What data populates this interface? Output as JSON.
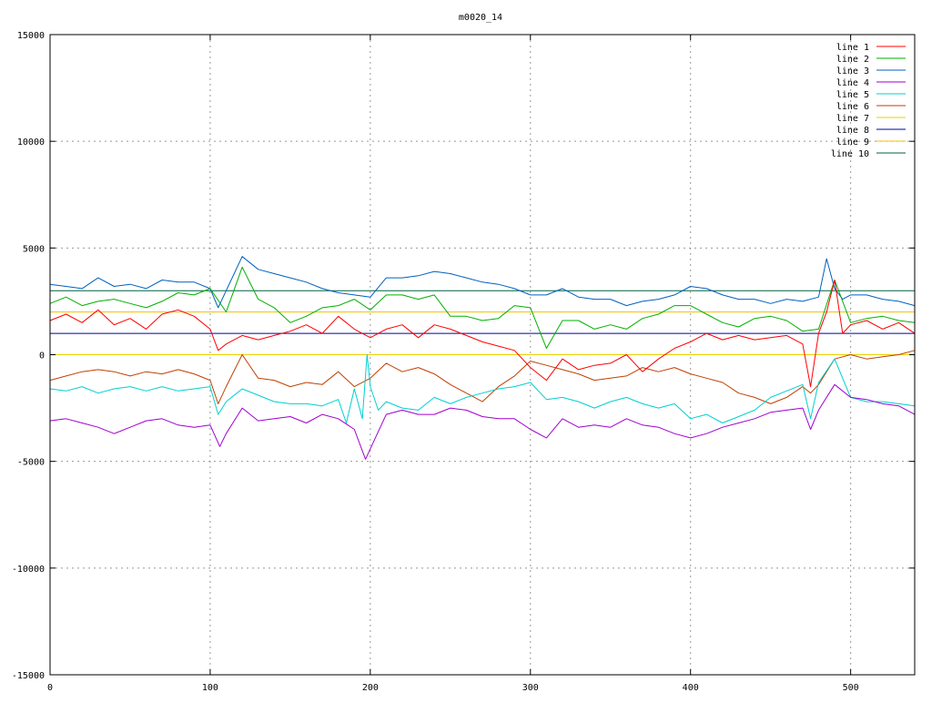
{
  "chart_data": {
    "type": "line",
    "title": "m0020_14",
    "xlabel": "",
    "ylabel": "",
    "xlim": [
      0,
      540
    ],
    "ylim": [
      -15000,
      15000
    ],
    "xticks": [
      0,
      100,
      200,
      300,
      400,
      500
    ],
    "yticks": [
      -15000,
      -10000,
      -5000,
      0,
      5000,
      10000,
      15000
    ],
    "grid": true,
    "legend_position": "top-right",
    "series": [
      {
        "name": "line 1",
        "color": "#ff0000",
        "x": [
          0,
          10,
          20,
          30,
          40,
          50,
          60,
          70,
          80,
          90,
          100,
          105,
          110,
          120,
          130,
          140,
          150,
          160,
          170,
          180,
          190,
          200,
          210,
          220,
          230,
          240,
          250,
          260,
          270,
          280,
          290,
          300,
          310,
          320,
          330,
          340,
          350,
          360,
          370,
          380,
          390,
          400,
          410,
          420,
          430,
          440,
          450,
          460,
          470,
          475,
          480,
          485,
          490,
          495,
          500,
          510,
          520,
          530,
          540
        ],
        "y": [
          1600,
          1900,
          1500,
          2100,
          1400,
          1700,
          1200,
          1900,
          2100,
          1800,
          1200,
          200,
          500,
          900,
          700,
          900,
          1100,
          1400,
          1000,
          1800,
          1200,
          800,
          1200,
          1400,
          800,
          1400,
          1200,
          900,
          600,
          400,
          200,
          -600,
          -1200,
          -200,
          -700,
          -500,
          -400,
          0,
          -800,
          -200,
          300,
          600,
          1000,
          700,
          900,
          700,
          800,
          900,
          500,
          -1500,
          1000,
          2000,
          3500,
          1000,
          1400,
          1600,
          1200,
          1500,
          1000
        ]
      },
      {
        "name": "line 2",
        "color": "#00b000",
        "x": [
          0,
          10,
          20,
          30,
          40,
          50,
          60,
          70,
          80,
          90,
          100,
          110,
          120,
          130,
          140,
          150,
          160,
          170,
          180,
          190,
          200,
          210,
          220,
          230,
          240,
          250,
          260,
          270,
          280,
          290,
          300,
          310,
          320,
          330,
          340,
          350,
          360,
          370,
          380,
          390,
          400,
          410,
          420,
          430,
          440,
          450,
          460,
          470,
          480,
          490,
          500,
          510,
          520,
          530,
          540
        ],
        "y": [
          2400,
          2700,
          2300,
          2500,
          2600,
          2400,
          2200,
          2500,
          2900,
          2800,
          3100,
          2000,
          4100,
          2600,
          2200,
          1500,
          1800,
          2200,
          2300,
          2600,
          2100,
          2800,
          2800,
          2600,
          2800,
          1800,
          1800,
          1600,
          1700,
          2300,
          2200,
          300,
          1600,
          1600,
          1200,
          1400,
          1200,
          1700,
          1900,
          2300,
          2300,
          1900,
          1500,
          1300,
          1700,
          1800,
          1600,
          1100,
          1200,
          3500,
          1500,
          1700,
          1800,
          1600,
          1500
        ]
      },
      {
        "name": "line 3",
        "color": "#0060c0",
        "x": [
          0,
          10,
          20,
          30,
          40,
          50,
          60,
          70,
          80,
          90,
          100,
          105,
          110,
          120,
          130,
          140,
          150,
          160,
          170,
          180,
          190,
          200,
          210,
          220,
          230,
          240,
          250,
          260,
          270,
          280,
          290,
          300,
          310,
          320,
          330,
          340,
          350,
          360,
          370,
          380,
          390,
          400,
          410,
          420,
          430,
          440,
          450,
          460,
          470,
          480,
          485,
          490,
          495,
          500,
          510,
          520,
          530,
          540
        ],
        "y": [
          3300,
          3200,
          3100,
          3600,
          3200,
          3300,
          3100,
          3500,
          3400,
          3400,
          3100,
          2200,
          3000,
          4600,
          4000,
          3800,
          3600,
          3400,
          3100,
          2900,
          2800,
          2700,
          3600,
          3600,
          3700,
          3900,
          3800,
          3600,
          3400,
          3300,
          3100,
          2800,
          2800,
          3100,
          2700,
          2600,
          2600,
          2300,
          2500,
          2600,
          2800,
          3200,
          3100,
          2800,
          2600,
          2600,
          2400,
          2600,
          2500,
          2700,
          4500,
          3100,
          2600,
          2800,
          2800,
          2600,
          2500,
          2300
        ]
      },
      {
        "name": "line 4",
        "color": "#a000d0",
        "x": [
          0,
          10,
          20,
          30,
          40,
          50,
          60,
          70,
          80,
          90,
          100,
          106,
          110,
          120,
          130,
          140,
          150,
          160,
          170,
          180,
          190,
          197,
          205,
          210,
          220,
          230,
          240,
          250,
          260,
          270,
          280,
          290,
          300,
          310,
          320,
          330,
          340,
          350,
          360,
          370,
          380,
          390,
          400,
          410,
          420,
          430,
          440,
          450,
          460,
          470,
          475,
          480,
          490,
          500,
          510,
          520,
          530,
          540
        ],
        "y": [
          -3100,
          -3000,
          -3200,
          -3400,
          -3700,
          -3400,
          -3100,
          -3000,
          -3300,
          -3400,
          -3300,
          -4300,
          -3700,
          -2500,
          -3100,
          -3000,
          -2900,
          -3200,
          -2800,
          -3000,
          -3500,
          -4900,
          -3600,
          -2800,
          -2600,
          -2800,
          -2800,
          -2500,
          -2600,
          -2900,
          -3000,
          -3000,
          -3500,
          -3900,
          -3000,
          -3400,
          -3300,
          -3400,
          -3000,
          -3300,
          -3400,
          -3700,
          -3900,
          -3700,
          -3400,
          -3200,
          -3000,
          -2700,
          -2600,
          -2500,
          -3500,
          -2600,
          -1400,
          -2000,
          -2100,
          -2300,
          -2400,
          -2800
        ]
      },
      {
        "name": "line 5",
        "color": "#00d0d0",
        "x": [
          0,
          10,
          20,
          30,
          40,
          50,
          60,
          70,
          80,
          90,
          100,
          105,
          110,
          120,
          130,
          140,
          150,
          160,
          170,
          180,
          185,
          190,
          195,
          198,
          200,
          205,
          210,
          220,
          230,
          240,
          250,
          260,
          270,
          280,
          290,
          300,
          310,
          320,
          330,
          340,
          350,
          360,
          370,
          380,
          390,
          400,
          410,
          420,
          430,
          440,
          450,
          460,
          470,
          475,
          480,
          490,
          500,
          510,
          520,
          530,
          540
        ],
        "y": [
          -1600,
          -1700,
          -1500,
          -1800,
          -1600,
          -1500,
          -1700,
          -1500,
          -1700,
          -1600,
          -1500,
          -2800,
          -2200,
          -1600,
          -1900,
          -2200,
          -2300,
          -2300,
          -2400,
          -2100,
          -3200,
          -1600,
          -3000,
          0,
          -1500,
          -2600,
          -2200,
          -2500,
          -2600,
          -2000,
          -2300,
          -2000,
          -1800,
          -1600,
          -1500,
          -1300,
          -2100,
          -2000,
          -2200,
          -2500,
          -2200,
          -2000,
          -2300,
          -2500,
          -2300,
          -3000,
          -2800,
          -3200,
          -2900,
          -2600,
          -2000,
          -1700,
          -1400,
          -3000,
          -1300,
          -200,
          -2000,
          -2200,
          -2200,
          -2300,
          -2400
        ]
      },
      {
        "name": "line 6",
        "color": "#c04000",
        "x": [
          0,
          10,
          20,
          30,
          40,
          50,
          60,
          70,
          80,
          90,
          100,
          105,
          110,
          120,
          130,
          140,
          150,
          160,
          170,
          180,
          190,
          200,
          210,
          220,
          230,
          240,
          250,
          260,
          270,
          280,
          290,
          300,
          310,
          320,
          330,
          340,
          350,
          360,
          370,
          380,
          390,
          400,
          410,
          420,
          430,
          440,
          450,
          460,
          470,
          475,
          480,
          490,
          500,
          510,
          520,
          530,
          540
        ],
        "y": [
          -1200,
          -1000,
          -800,
          -700,
          -800,
          -1000,
          -800,
          -900,
          -700,
          -900,
          -1200,
          -2300,
          -1500,
          0,
          -1100,
          -1200,
          -1500,
          -1300,
          -1400,
          -800,
          -1500,
          -1100,
          -400,
          -800,
          -600,
          -900,
          -1400,
          -1800,
          -2200,
          -1500,
          -1000,
          -300,
          -500,
          -700,
          -900,
          -1200,
          -1100,
          -1000,
          -600,
          -800,
          -600,
          -900,
          -1100,
          -1300,
          -1800,
          -2000,
          -2300,
          -2000,
          -1500,
          -1800,
          -1400,
          -200,
          0,
          -200,
          -100,
          0,
          200
        ]
      },
      {
        "name": "line 7",
        "color": "#e8d000",
        "x": [
          0,
          540
        ],
        "y": [
          0,
          0
        ]
      },
      {
        "name": "line 8",
        "color": "#0000a0",
        "x": [
          0,
          540
        ],
        "y": [
          1000,
          1000
        ]
      },
      {
        "name": "line 9",
        "color": "#f0c000",
        "x": [
          0,
          540
        ],
        "y": [
          2000,
          2000
        ]
      },
      {
        "name": "line 10",
        "color": "#006040",
        "x": [
          0,
          540
        ],
        "y": [
          3000,
          3000
        ]
      }
    ]
  }
}
